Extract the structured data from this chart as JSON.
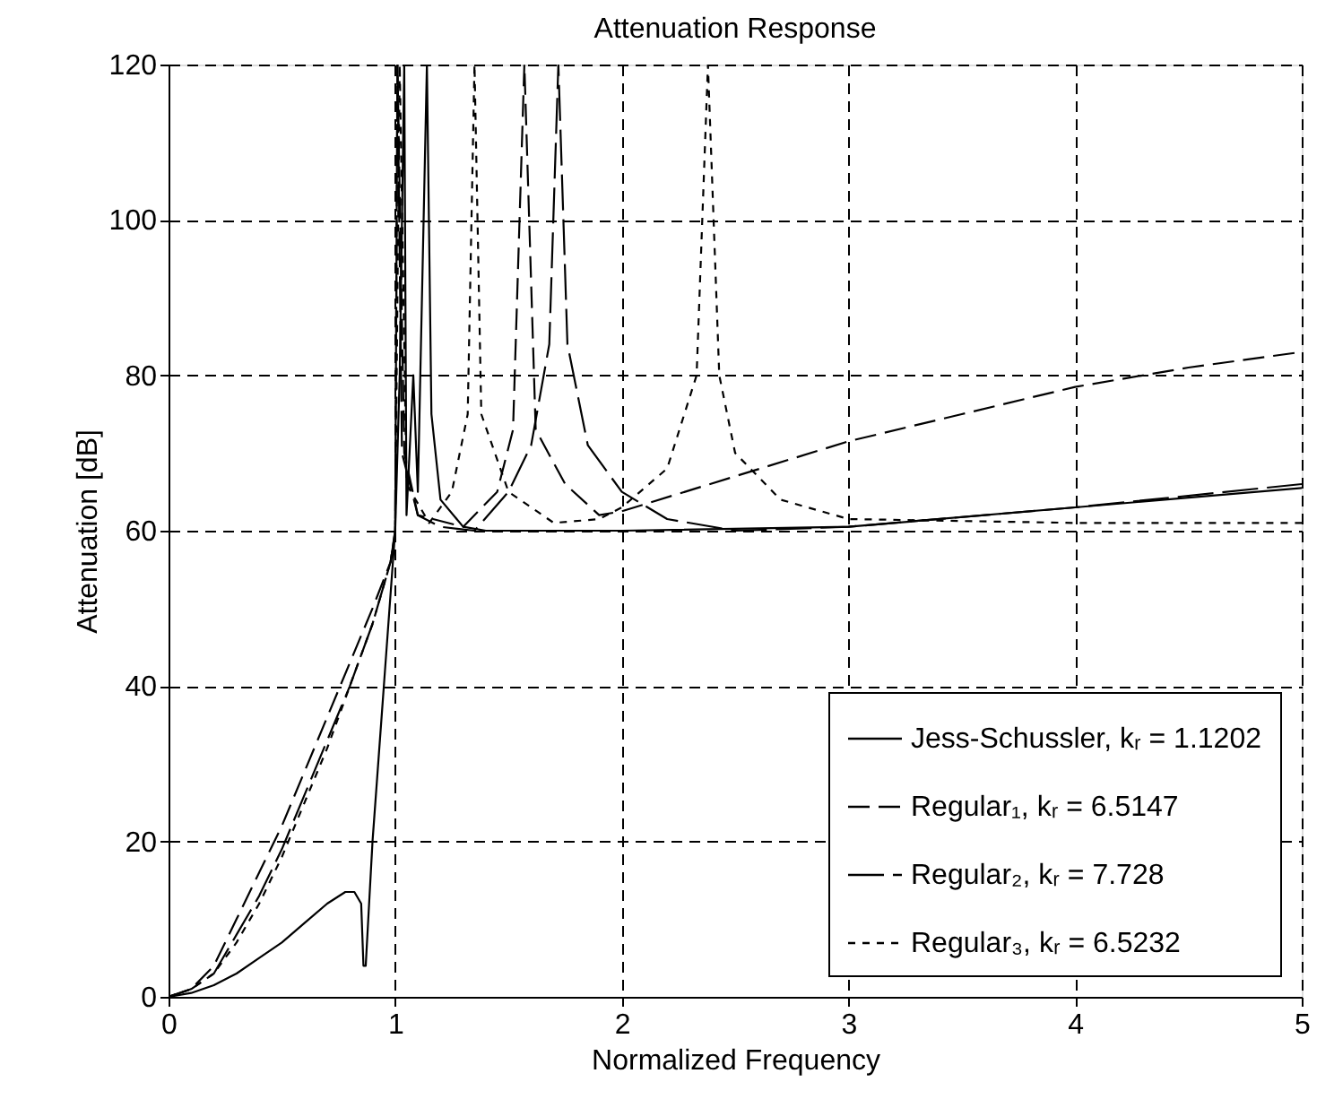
{
  "chart_data": {
    "type": "line",
    "title": "Attenuation Response",
    "xlabel": "Normalized Frequency",
    "ylabel": "Attenuation [dB]",
    "xlim": [
      0,
      5
    ],
    "ylim": [
      0,
      120
    ],
    "xticks": [
      0,
      1,
      2,
      3,
      4,
      5
    ],
    "yticks": [
      0,
      20,
      40,
      60,
      80,
      100,
      120
    ],
    "grid": true,
    "legend": "bottom right",
    "series": [
      {
        "name": "Jess-Schussler, kᵣ = 1.1202",
        "color": "#000000",
        "line_style": "solid",
        "x": [
          0,
          0.1,
          0.2,
          0.3,
          0.4,
          0.5,
          0.6,
          0.7,
          0.78,
          0.82,
          0.85,
          0.86,
          0.87,
          0.9,
          0.95,
          1.0,
          1.02,
          1.04,
          1.05,
          1.08,
          1.1,
          1.14,
          1.16,
          1.2,
          1.3,
          1.4,
          2.0,
          3.0,
          4.0,
          5.0
        ],
        "values": [
          0,
          0.5,
          1.5,
          3,
          5,
          7,
          9.5,
          12,
          13.5,
          13.5,
          12,
          4,
          4,
          20,
          40,
          60,
          80,
          120,
          62,
          80,
          65,
          120,
          75,
          64,
          60.5,
          60,
          60,
          60.5,
          63,
          65.5
        ]
      },
      {
        "name": "Regular₁, kᵣ = 6.5147",
        "color": "#000000",
        "line_style": "dashed",
        "x": [
          0,
          0.1,
          0.2,
          0.3,
          0.4,
          0.5,
          0.6,
          0.7,
          0.8,
          0.9,
          0.98,
          1.0,
          1.01,
          1.04,
          1.1,
          1.3,
          1.45,
          1.52,
          1.57,
          1.62,
          1.75,
          1.9,
          2.0,
          2.5,
          3.0,
          3.5,
          4.0,
          4.5,
          5.0
        ],
        "values": [
          0,
          1,
          4,
          10,
          16,
          22,
          29,
          36,
          43,
          50,
          56,
          60,
          120,
          70,
          62,
          60.5,
          65,
          73,
          120,
          73,
          66,
          62,
          62.5,
          67,
          71.5,
          75,
          78.5,
          81,
          83
        ]
      },
      {
        "name": "Regular₂, kᵣ = 7.728",
        "color": "#000000",
        "line_style": "dashed",
        "x": [
          0,
          0.1,
          0.2,
          0.3,
          0.4,
          0.5,
          0.6,
          0.7,
          0.8,
          0.9,
          0.98,
          1.0,
          1.01,
          1.03,
          1.1,
          1.2,
          1.35,
          1.5,
          1.6,
          1.68,
          1.72,
          1.76,
          1.85,
          2.0,
          2.2,
          2.5,
          3.0,
          4.0,
          5.0
        ],
        "values": [
          0,
          1,
          3,
          8,
          13,
          19,
          26,
          33,
          40,
          48,
          56,
          60,
          120,
          70,
          62,
          60.5,
          60,
          65,
          71,
          84,
          120,
          84,
          71,
          65,
          61.5,
          60,
          60.5,
          63,
          66
        ]
      },
      {
        "name": "Regular₃, kᵣ = 6.5232",
        "color": "#000000",
        "line_style": "dotted",
        "x": [
          0,
          0.1,
          0.2,
          0.3,
          0.4,
          0.5,
          0.6,
          0.7,
          0.8,
          0.9,
          0.98,
          1.0,
          1.02,
          1.05,
          1.15,
          1.25,
          1.32,
          1.35,
          1.38,
          1.5,
          1.7,
          1.9,
          2.0,
          2.2,
          2.33,
          2.38,
          2.43,
          2.5,
          2.7,
          3.0,
          4.0,
          5.0
        ],
        "values": [
          0,
          1,
          3,
          7,
          12,
          18,
          25,
          32,
          40,
          48,
          56,
          60,
          120,
          66,
          61,
          65,
          75,
          120,
          75,
          65,
          61,
          61.5,
          63,
          68,
          80,
          120,
          80,
          70,
          64,
          61.5,
          61,
          61
        ]
      }
    ]
  }
}
